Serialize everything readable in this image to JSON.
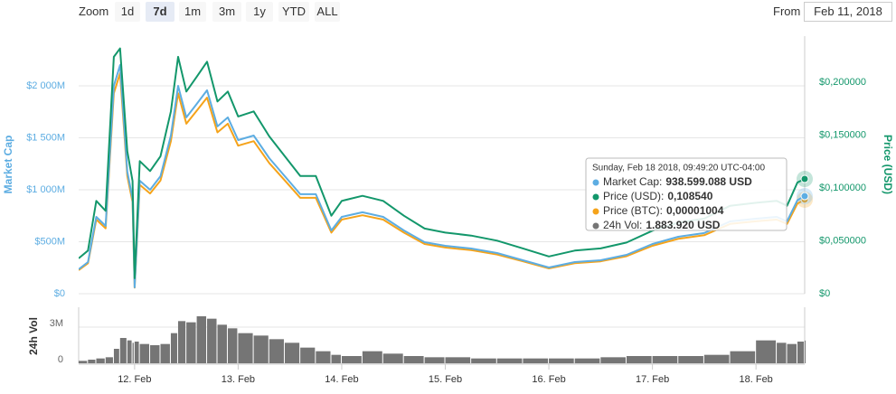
{
  "toolbar": {
    "zoom_label": "Zoom",
    "buttons": [
      "1d",
      "7d",
      "1m",
      "3m",
      "1y",
      "YTD",
      "ALL"
    ],
    "active": 1,
    "from_label": "From",
    "from_value": "Feb 11, 2018"
  },
  "chart_data": {
    "type": "line",
    "x": [
      11.46,
      11.55,
      11.63,
      11.72,
      11.8,
      11.86,
      11.93,
      11.98,
      12.0,
      12.05,
      12.15,
      12.25,
      12.35,
      12.42,
      12.5,
      12.6,
      12.7,
      12.8,
      12.9,
      13.0,
      13.15,
      13.3,
      13.45,
      13.6,
      13.75,
      13.9,
      14.0,
      14.2,
      14.4,
      14.6,
      14.8,
      15.0,
      15.25,
      15.5,
      15.75,
      16.0,
      16.25,
      16.5,
      16.75,
      17.0,
      17.25,
      17.5,
      17.75,
      18.0,
      18.2,
      18.3,
      18.4,
      18.47
    ],
    "xlim": [
      11.46,
      18.47
    ],
    "xticks": [
      {
        "value": 12,
        "label": "12. Feb"
      },
      {
        "value": 13,
        "label": "13. Feb"
      },
      {
        "value": 14,
        "label": "14. Feb"
      },
      {
        "value": 15,
        "label": "15. Feb"
      },
      {
        "value": 16,
        "label": "16. Feb"
      },
      {
        "value": 17,
        "label": "17. Feb"
      },
      {
        "value": 18,
        "label": "18. Feb"
      }
    ],
    "y_label": "Market Cap",
    "y2_label": "Price (USD)",
    "y4_label": "24h Vol",
    "ylim": [
      0,
      2478
    ],
    "yticks": [
      {
        "value": 0,
        "label": "$0"
      },
      {
        "value": 500,
        "label": "$500M"
      },
      {
        "value": 1000,
        "label": "$1 000M"
      },
      {
        "value": 1500,
        "label": "$1 500M"
      },
      {
        "value": 2000,
        "label": "$2 000M"
      }
    ],
    "y2lim": [
      0,
      0.2436
    ],
    "y2ticks": [
      {
        "value": 0,
        "label": "$0"
      },
      {
        "value": 0.05,
        "label": "$0,050000"
      },
      {
        "value": 0.1,
        "label": "$0,100000"
      },
      {
        "value": 0.15,
        "label": "$0,150000"
      },
      {
        "value": 0.2,
        "label": "$0,200000"
      }
    ],
    "y3lim": [
      0,
      2.75e-05
    ],
    "y4lim": [
      0,
      4.65
    ],
    "y4ticks": [
      0,
      {
        "value": 3,
        "label": "3M"
      }
    ],
    "grid": true,
    "series": [
      {
        "name": "Market Cap",
        "color": "#5dade2",
        "axis": "y",
        "values": [
          235,
          304,
          739,
          652,
          2000,
          2200,
          1174,
          913,
          61,
          1087,
          1000,
          1130,
          1522,
          2000,
          1696,
          1826,
          1957,
          1609,
          1696,
          1478,
          1522,
          1304,
          1130,
          957,
          957,
          609,
          739,
          783,
          739,
          609,
          496,
          461,
          435,
          391,
          322,
          252,
          304,
          322,
          374,
          478,
          548,
          583,
          696,
          722,
          739,
          696,
          900,
          938.599088
        ]
      },
      {
        "name": "Price (USD)",
        "color": "#13976b",
        "axis": "y2",
        "values": [
          0.0334,
          0.0408,
          0.0878,
          0.0784,
          0.224,
          0.232,
          0.1348,
          0.1066,
          0.0146,
          0.1254,
          0.116,
          0.13,
          0.1724,
          0.224,
          0.1912,
          0.2052,
          0.2194,
          0.1818,
          0.1912,
          0.1676,
          0.1724,
          0.1488,
          0.13,
          0.1114,
          0.1114,
          0.0738,
          0.0878,
          0.0926,
          0.0878,
          0.0738,
          0.0616,
          0.0578,
          0.055,
          0.0502,
          0.0428,
          0.0352,
          0.0408,
          0.0428,
          0.0484,
          0.0596,
          0.0672,
          0.071,
          0.0832,
          0.086,
          0.0878,
          0.0832,
          0.1052,
          0.10854
        ]
      },
      {
        "name": "Price (BTC)",
        "color": "#f5a31a",
        "axis": "y3",
        "values": [
          2.51e-06,
          3.25e-06,
          7.91e-06,
          6.98e-06,
          2.14e-05,
          2.354e-05,
          1.256e-05,
          9.77e-06,
          6.5e-07,
          1.163e-05,
          1.07e-05,
          1.209e-05,
          1.629e-05,
          2.14e-05,
          1.815e-05,
          1.954e-05,
          2.094e-05,
          1.722e-05,
          1.815e-05,
          1.581e-05,
          1.629e-05,
          1.395e-05,
          1.209e-05,
          1.024e-05,
          1.024e-05,
          6.52e-06,
          7.91e-06,
          8.38e-06,
          7.91e-06,
          6.52e-06,
          5.31e-06,
          4.93e-06,
          4.65e-06,
          4.18e-06,
          3.45e-06,
          2.7e-06,
          3.25e-06,
          3.45e-06,
          4e-06,
          5.11e-06,
          5.86e-06,
          6.24e-06,
          7.45e-06,
          7.73e-06,
          7.91e-06,
          7.45e-06,
          9.63e-06,
          1.004e-05
        ]
      },
      {
        "name": "24h Vol",
        "color": "#757575",
        "axis": "y4",
        "values": [
          0.2,
          0.3,
          0.4,
          0.5,
          1.2,
          2.1,
          1.9,
          1.7,
          1.8,
          1.6,
          1.5,
          1.6,
          2.5,
          3.5,
          3.4,
          3.9,
          3.7,
          3.2,
          2.9,
          2.5,
          2.3,
          2.0,
          1.7,
          1.3,
          1.0,
          0.7,
          0.6,
          1.0,
          0.8,
          0.6,
          0.5,
          0.5,
          0.4,
          0.4,
          0.4,
          0.4,
          0.4,
          0.5,
          0.6,
          0.6,
          0.6,
          0.7,
          1.0,
          1.9,
          1.7,
          1.6,
          1.8,
          1.88392
        ]
      }
    ],
    "tooltip": {
      "title": "Sunday, Feb 18 2018, 09:49:20 UTC-04:00",
      "items": [
        {
          "label": "Market Cap:",
          "value": "938.599.088 USD"
        },
        {
          "label": "Price (USD):",
          "value": "0,108540"
        },
        {
          "label": "Price (BTC):",
          "value": "0,00001004"
        },
        {
          "label": "24h Vol:",
          "value": "1.883.920 USD"
        }
      ]
    }
  }
}
